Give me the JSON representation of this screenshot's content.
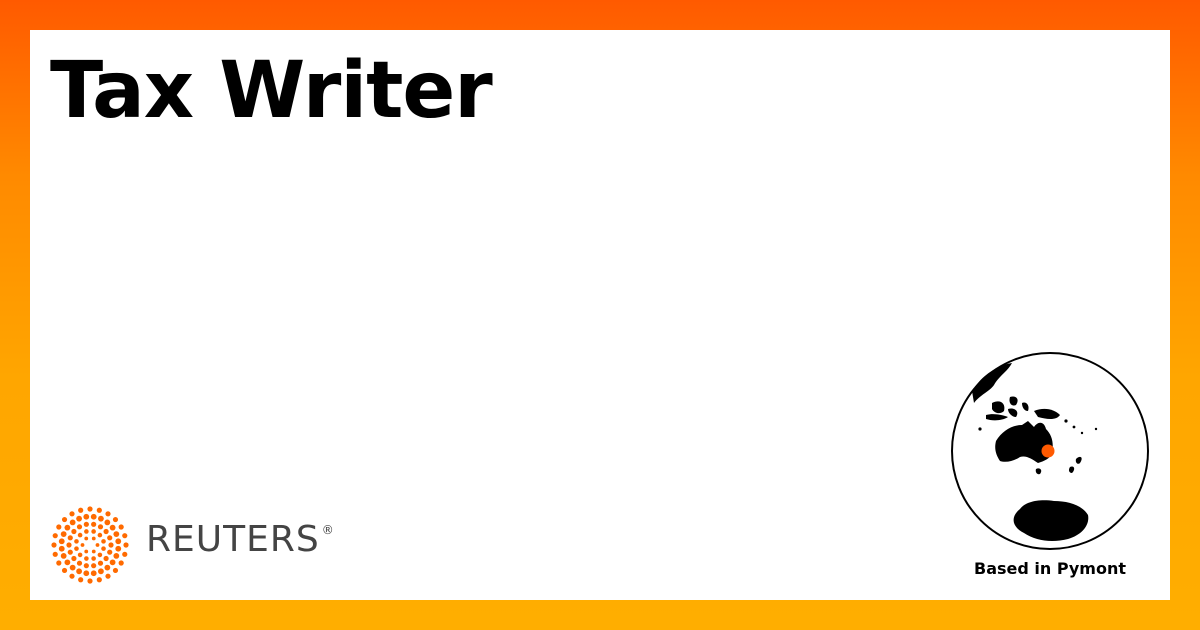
{
  "title": "Tax Writer",
  "brand": {
    "name": "REUTERS",
    "registered_mark": "®",
    "logo_icon": "reuters-dot-ring-icon",
    "logo_color": "#ff6a00",
    "text_color": "#444444"
  },
  "location": {
    "label": "Based in Pymont",
    "map_icon": "globe-australia-icon",
    "marker_color": "#ff5a00"
  },
  "colors": {
    "frame_top": "#ff5a00",
    "frame_bottom": "#ffae00",
    "card": "#ffffff"
  }
}
